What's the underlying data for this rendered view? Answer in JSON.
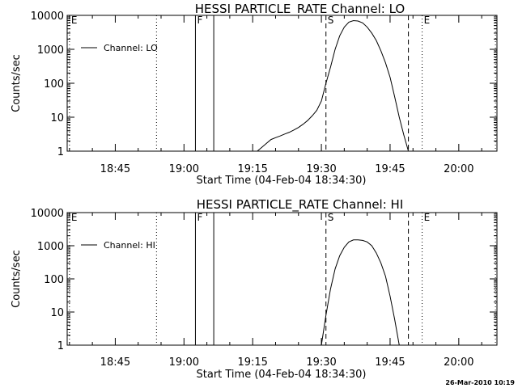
{
  "footer_timestamp": "26-Mar-2010 10:19",
  "chart_data": [
    {
      "type": "line",
      "title": "HESSI PARTICLE_RATE Channel: LO",
      "xlabel": "Start Time (04-Feb-04 18:34:30)",
      "ylabel": "Counts/sec",
      "yscale": "log",
      "ylim": [
        1,
        10000
      ],
      "xlim": [
        "18:34:30",
        "20:08:20"
      ],
      "x_ticks": [
        "18:45",
        "19:00",
        "19:15",
        "19:30",
        "19:45",
        "20:00"
      ],
      "y_ticks": [
        "1",
        "10",
        "100",
        "1000",
        "10000"
      ],
      "legend": {
        "position": "top-left",
        "entries": [
          "Channel: LO"
        ]
      },
      "vertical_markers": [
        {
          "time": "18:35:00",
          "style": "dotted",
          "label": "E"
        },
        {
          "time": "18:54:00",
          "style": "dotted",
          "label": ""
        },
        {
          "time": "19:02:30",
          "style": "solid",
          "label": "F"
        },
        {
          "time": "19:06:30",
          "style": "solid",
          "label": ""
        },
        {
          "time": "19:31:00",
          "style": "dashed",
          "label": "S"
        },
        {
          "time": "19:49:00",
          "style": "dashed",
          "label": ""
        },
        {
          "time": "19:52:00",
          "style": "dotted",
          "label": "E"
        },
        {
          "time": "20:08:00",
          "style": "dotted",
          "label": ""
        }
      ],
      "series": [
        {
          "name": "Channel: LO",
          "x": [
            "19:16:00",
            "19:17:00",
            "19:18:00",
            "19:19:00",
            "19:20:00",
            "19:21:00",
            "19:22:00",
            "19:23:00",
            "19:24:00",
            "19:25:00",
            "19:26:00",
            "19:27:00",
            "19:28:00",
            "19:29:00",
            "19:30:00",
            "19:31:00",
            "19:32:00",
            "19:33:00",
            "19:34:00",
            "19:35:00",
            "19:36:00",
            "19:37:00",
            "19:38:00",
            "19:39:00",
            "19:40:00",
            "19:41:00",
            "19:42:00",
            "19:43:00",
            "19:44:00",
            "19:45:00",
            "19:46:00",
            "19:47:00",
            "19:48:00",
            "19:49:00"
          ],
          "y": [
            1,
            1.3,
            1.7,
            2.2,
            2.5,
            2.8,
            3.2,
            3.6,
            4.2,
            5,
            6.2,
            8,
            11,
            16,
            30,
            100,
            300,
            1000,
            2500,
            4500,
            6300,
            7000,
            6800,
            6000,
            4500,
            3000,
            1800,
            900,
            400,
            150,
            40,
            10,
            3,
            1
          ]
        }
      ]
    },
    {
      "type": "line",
      "title": "HESSI PARTICLE_RATE Channel: HI",
      "xlabel": "Start Time (04-Feb-04 18:34:30)",
      "ylabel": "Counts/sec",
      "yscale": "log",
      "ylim": [
        1,
        10000
      ],
      "xlim": [
        "18:34:30",
        "20:08:20"
      ],
      "x_ticks": [
        "18:45",
        "19:00",
        "19:15",
        "19:30",
        "19:45",
        "20:00"
      ],
      "y_ticks": [
        "1",
        "10",
        "100",
        "1000",
        "10000"
      ],
      "legend": {
        "position": "top-left",
        "entries": [
          "Channel: HI"
        ]
      },
      "vertical_markers": [
        {
          "time": "18:35:00",
          "style": "dotted",
          "label": "E"
        },
        {
          "time": "18:54:00",
          "style": "dotted",
          "label": ""
        },
        {
          "time": "19:02:30",
          "style": "solid",
          "label": "F"
        },
        {
          "time": "19:06:30",
          "style": "solid",
          "label": ""
        },
        {
          "time": "19:31:00",
          "style": "dashed",
          "label": "S"
        },
        {
          "time": "19:49:00",
          "style": "dashed",
          "label": ""
        },
        {
          "time": "19:52:00",
          "style": "dotted",
          "label": "E"
        },
        {
          "time": "20:08:00",
          "style": "dotted",
          "label": ""
        }
      ],
      "series": [
        {
          "name": "Channel: HI",
          "x": [
            "19:30:00",
            "19:31:00",
            "19:32:00",
            "19:33:00",
            "19:34:00",
            "19:35:00",
            "19:36:00",
            "19:37:00",
            "19:38:00",
            "19:39:00",
            "19:40:00",
            "19:41:00",
            "19:42:00",
            "19:43:00",
            "19:44:00",
            "19:45:00",
            "19:46:00",
            "19:47:00"
          ],
          "y": [
            1,
            8,
            50,
            200,
            500,
            900,
            1300,
            1500,
            1500,
            1450,
            1300,
            1000,
            600,
            300,
            120,
            30,
            6,
            1
          ]
        }
      ]
    }
  ]
}
